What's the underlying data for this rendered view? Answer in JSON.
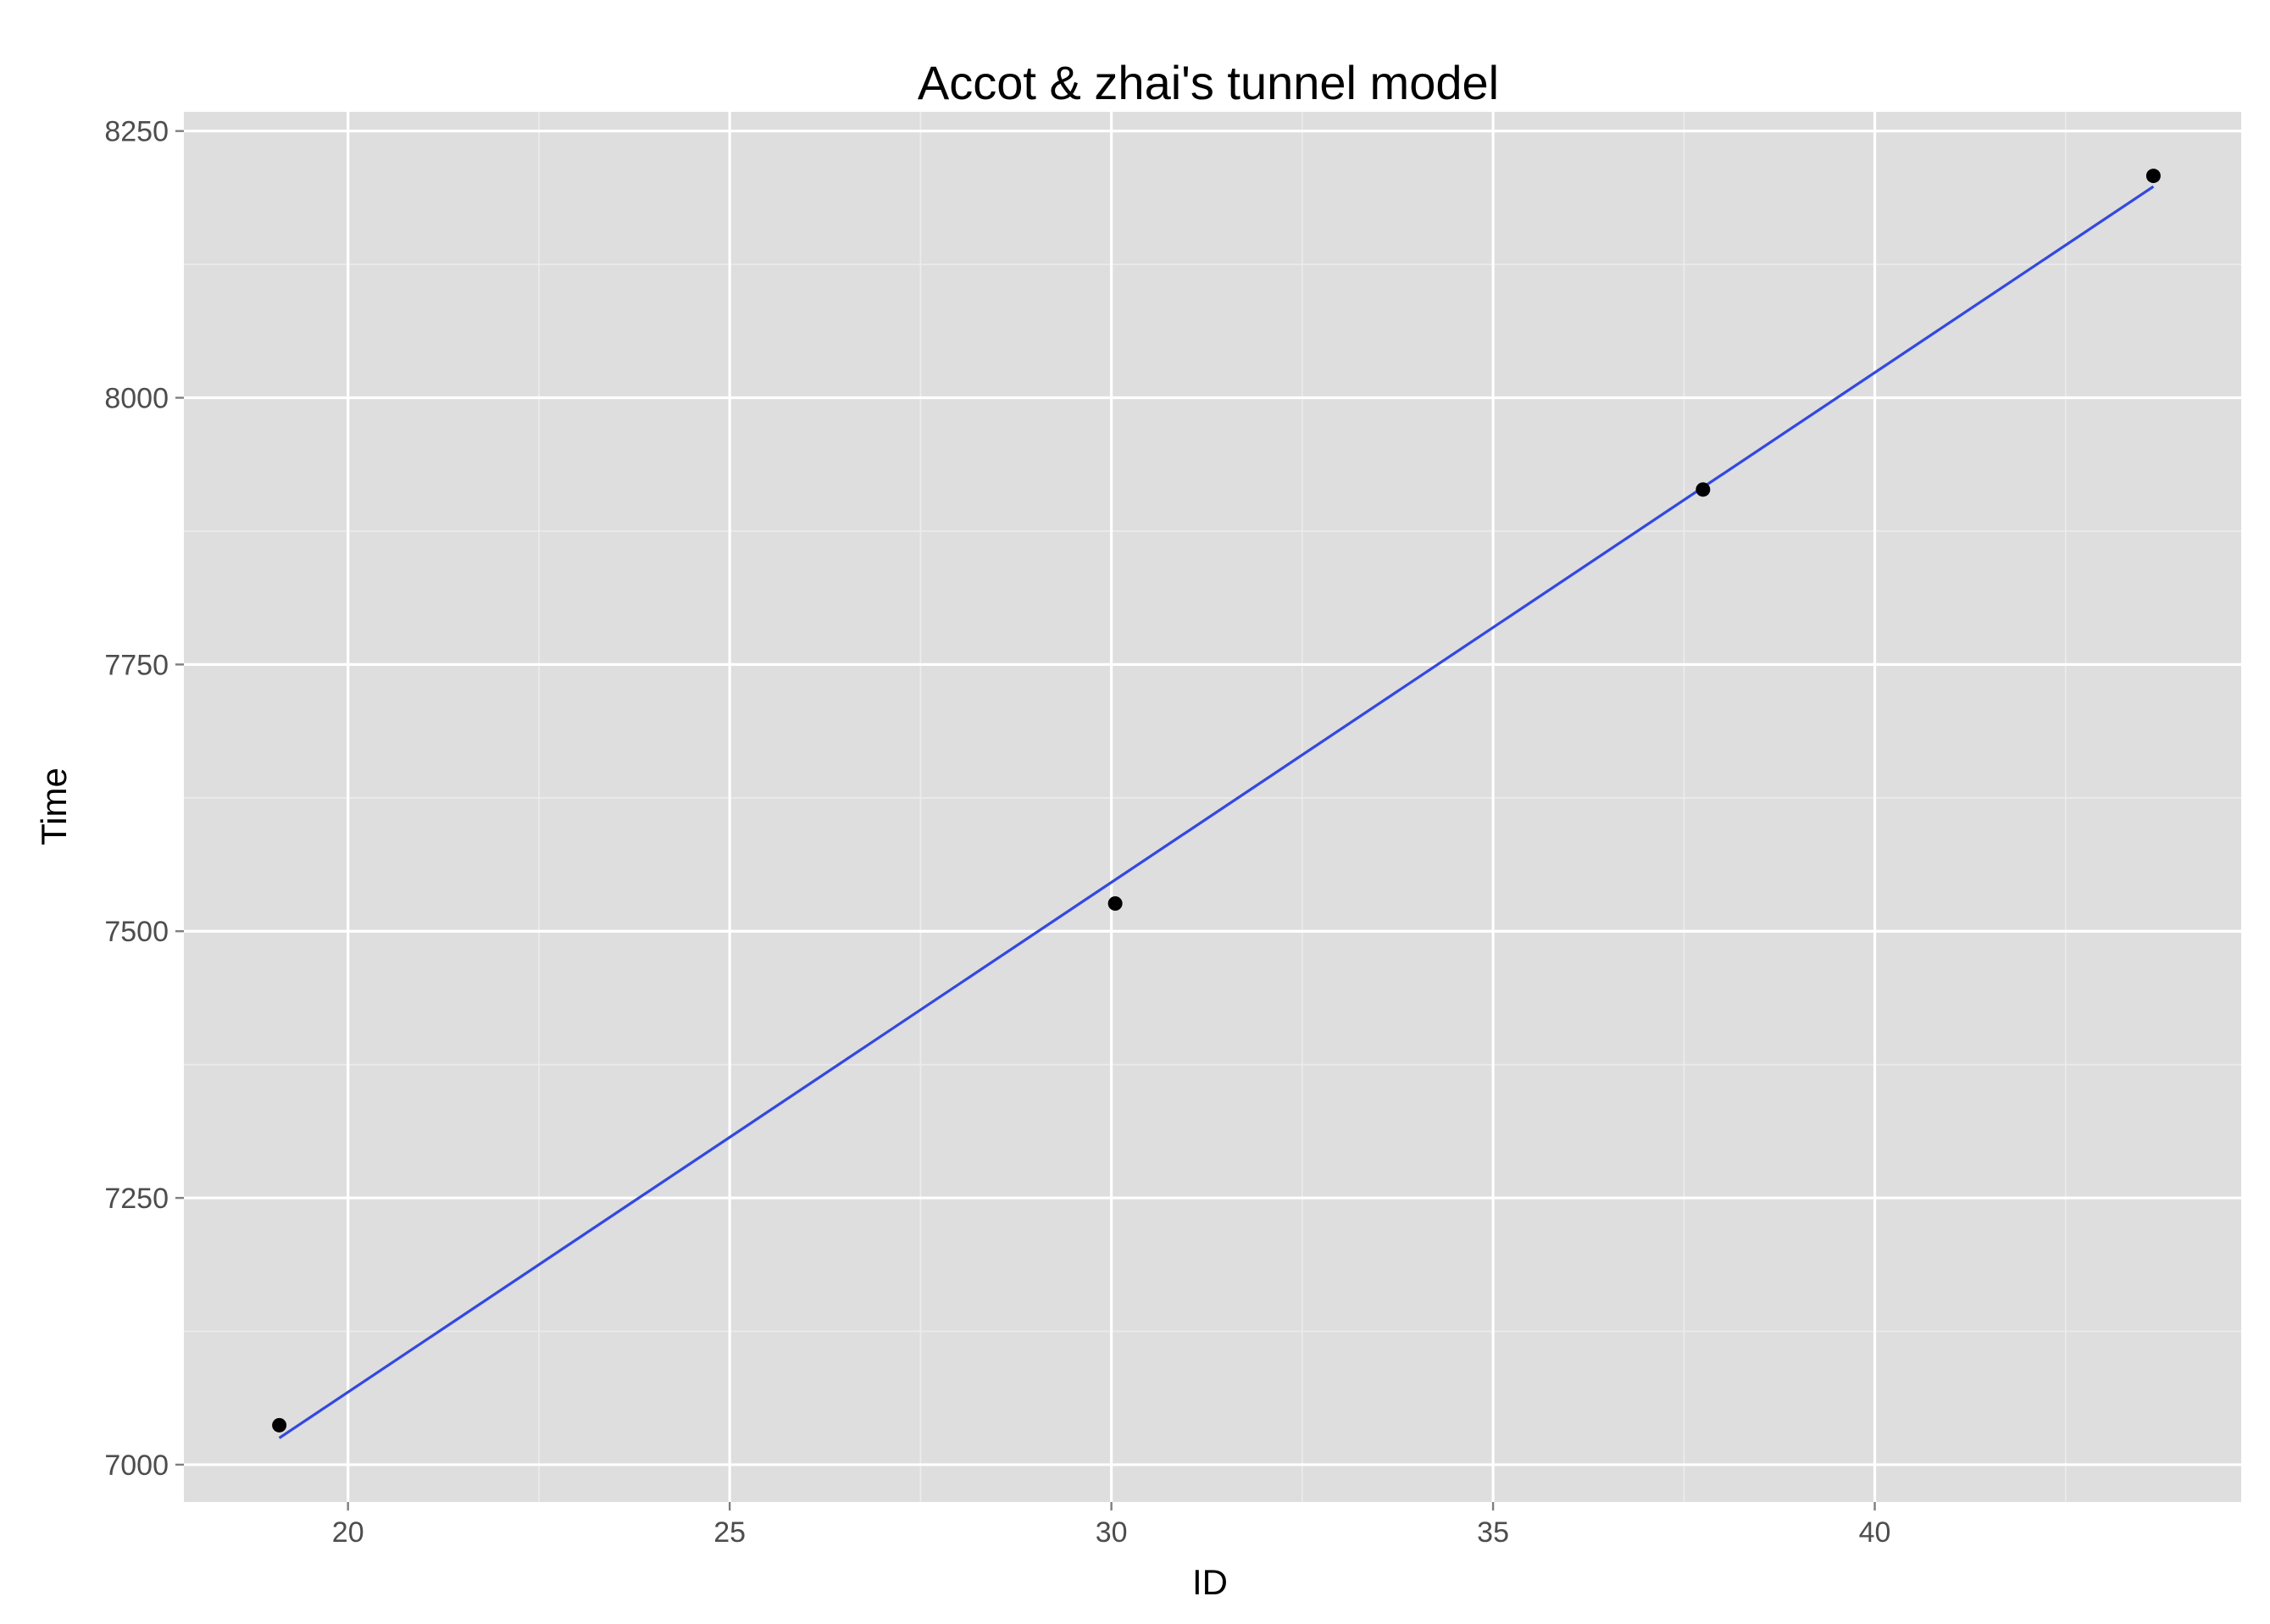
{
  "chart_data": {
    "type": "scatter",
    "title": "Accot & zhai's tunnel model",
    "xlabel": "ID",
    "ylabel": "Time",
    "xlim": [
      17.85,
      44.8
    ],
    "ylim": [
      6965,
      8268
    ],
    "x_ticks": [
      20,
      25,
      30,
      35,
      40
    ],
    "x_tick_labels": [
      "20",
      "25",
      "30",
      "35",
      "40"
    ],
    "y_ticks": [
      7000,
      7250,
      7500,
      7750,
      8000,
      8250
    ],
    "y_tick_labels": [
      "7000",
      "7250",
      "7500",
      "7750",
      "8000",
      "8250"
    ],
    "grid": true,
    "background": "#dedede",
    "grid_color": "#ffffff",
    "point_color": "#000000",
    "series": [
      {
        "type": "scatter",
        "points": [
          {
            "x": 19.1,
            "y": 7037
          },
          {
            "x": 30.05,
            "y": 7526
          },
          {
            "x": 37.75,
            "y": 7914
          },
          {
            "x": 43.65,
            "y": 8208
          }
        ]
      },
      {
        "type": "line",
        "color": "#3047ec",
        "points": [
          {
            "x": 19.1,
            "y": 7025
          },
          {
            "x": 43.65,
            "y": 8198
          }
        ]
      }
    ]
  }
}
